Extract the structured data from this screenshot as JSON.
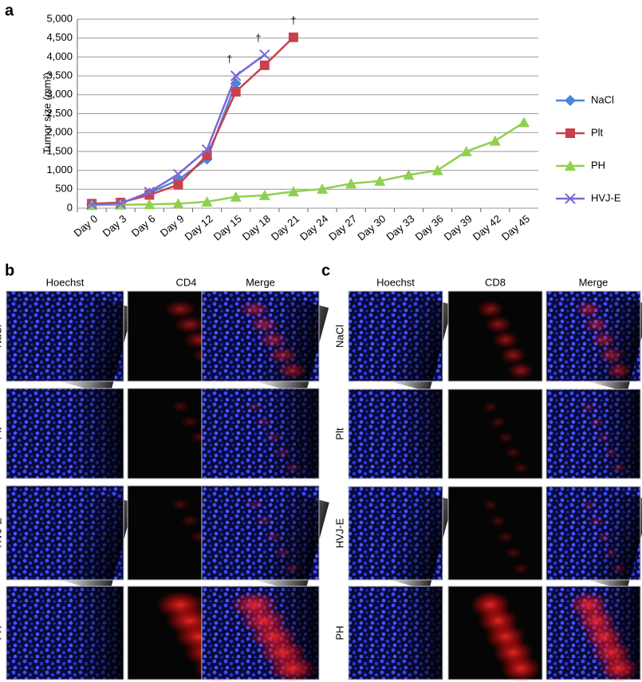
{
  "panels": {
    "a": "a",
    "b": "b",
    "c": "c"
  },
  "chart_data": {
    "type": "line",
    "ylabel": "Tumor size (mm³)",
    "categories": [
      "Day 0",
      "Day 3",
      "Day 6",
      "Day 9",
      "Day 12",
      "Day 15",
      "Day 18",
      "Day 21",
      "Day 24",
      "Day 27",
      "Day 30",
      "Day 33",
      "Day 36",
      "Day 39",
      "Day 42",
      "Day 45"
    ],
    "series": [
      {
        "name": "NaCl",
        "color": "#4a86d8",
        "marker": "diamond",
        "values": [
          100,
          130,
          400,
          750,
          1300,
          3300,
          null,
          null,
          null,
          null,
          null,
          null,
          null,
          null,
          null,
          null
        ]
      },
      {
        "name": "Plt",
        "color": "#c8414b",
        "marker": "square",
        "values": [
          120,
          150,
          350,
          620,
          1400,
          3080,
          3780,
          4520,
          null,
          null,
          null,
          null,
          null,
          null,
          null,
          null
        ]
      },
      {
        "name": "PH",
        "color": "#8fd14f",
        "marker": "triangle",
        "values": [
          80,
          90,
          100,
          120,
          170,
          300,
          340,
          440,
          510,
          650,
          720,
          880,
          1000,
          1500,
          1780,
          2270
        ]
      },
      {
        "name": "HVJ-E",
        "color": "#7b68d8",
        "marker": "x",
        "values": [
          100,
          120,
          430,
          900,
          1550,
          3500,
          4060,
          null,
          null,
          null,
          null,
          null,
          null,
          null,
          null,
          null
        ]
      }
    ],
    "annotations": [
      "†",
      "†",
      "†"
    ],
    "ylim": [
      0,
      5000
    ],
    "yticks": [
      0,
      500,
      {
        "value": 1000,
        "label": "1,000"
      },
      {
        "value": 1500,
        "label": "1,500"
      },
      {
        "value": 2000,
        "label": "2,000"
      },
      {
        "value": 2500,
        "label": "2,500"
      },
      {
        "value": 3000,
        "label": "3,000"
      },
      {
        "value": 3500,
        "label": "3,500"
      },
      {
        "value": 4000,
        "label": "4,000"
      },
      {
        "value": 4500,
        "label": "4,500"
      },
      {
        "value": 5000,
        "label": "5,000"
      }
    ],
    "grid": true
  },
  "panel_b": {
    "columns": [
      "Hoechst",
      "CD4",
      "Merge"
    ],
    "rows": [
      "NaCl",
      "Plt",
      "HVJ-E",
      "PH"
    ]
  },
  "panel_c": {
    "columns": [
      "Hoechst",
      "CD8",
      "Merge"
    ],
    "rows": [
      "NaCl",
      "Plt",
      "HVJ-E",
      "PH"
    ]
  }
}
